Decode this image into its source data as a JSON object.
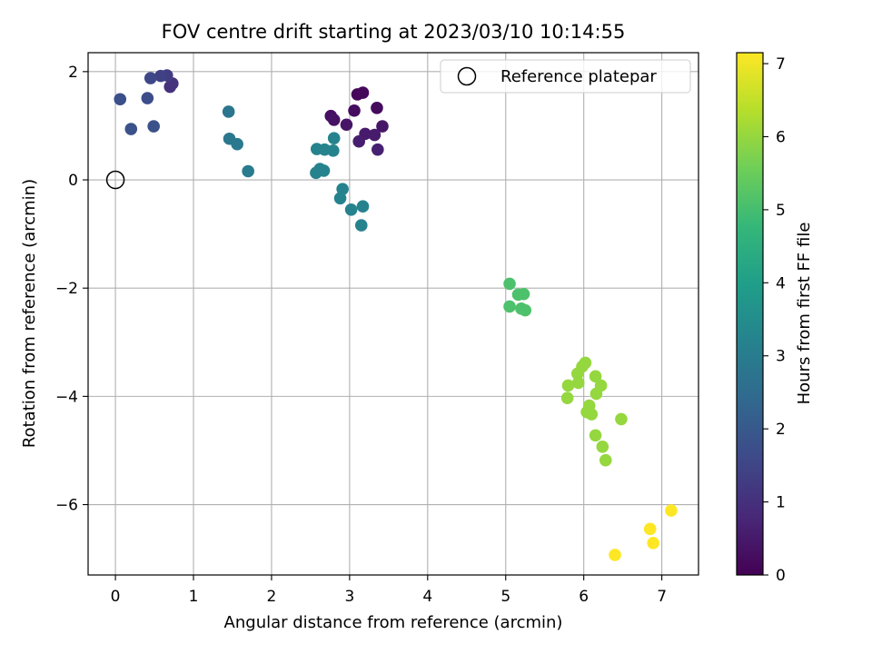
{
  "chart_data": {
    "type": "scatter",
    "title": "FOV centre drift starting at 2023/03/10 10:14:55",
    "xlabel": "Angular distance from reference (arcmin)",
    "ylabel": "Rotation from reference (arcmin)",
    "xlim": [
      -0.35,
      7.47
    ],
    "ylim": [
      -7.3,
      2.35
    ],
    "xticks": [
      0,
      1,
      2,
      3,
      4,
      5,
      6,
      7
    ],
    "yticks": [
      -6,
      -4,
      -2,
      0,
      2
    ],
    "xtick_labels": [
      "0",
      "1",
      "2",
      "3",
      "4",
      "5",
      "6",
      "7"
    ],
    "ytick_labels": [
      "−6",
      "−4",
      "−2",
      "0",
      "2"
    ],
    "grid": true,
    "legend": {
      "position": "top-right",
      "entries": [
        "Reference platepar"
      ]
    },
    "reference_point": {
      "name": "Reference platepar",
      "x": 0,
      "y": 0,
      "marker": "open-circle"
    },
    "colorbar": {
      "label": "Hours from first FF file",
      "min": 0,
      "max": 7.15,
      "ticks": [
        0,
        1,
        2,
        3,
        4,
        5,
        6,
        7
      ],
      "tick_labels": [
        "0",
        "1",
        "2",
        "3",
        "4",
        "5",
        "6",
        "7"
      ],
      "colormap": "viridis",
      "colors": [
        "#440154",
        "#482878",
        "#3e4989",
        "#31688e",
        "#26828e",
        "#1f9e89",
        "#35b779",
        "#6ece58",
        "#b5de2b",
        "#fde725"
      ]
    },
    "points": [
      {
        "x": 3.1,
        "y": 1.58,
        "h": 0.1
      },
      {
        "x": 3.17,
        "y": 1.61,
        "h": 0.15
      },
      {
        "x": 3.35,
        "y": 1.33,
        "h": 0.2
      },
      {
        "x": 3.06,
        "y": 1.28,
        "h": 0.25
      },
      {
        "x": 2.76,
        "y": 1.18,
        "h": 0.3
      },
      {
        "x": 2.8,
        "y": 1.11,
        "h": 0.35
      },
      {
        "x": 2.96,
        "y": 1.02,
        "h": 0.4
      },
      {
        "x": 3.42,
        "y": 0.99,
        "h": 0.45
      },
      {
        "x": 3.2,
        "y": 0.85,
        "h": 0.5
      },
      {
        "x": 3.32,
        "y": 0.83,
        "h": 0.55
      },
      {
        "x": 3.12,
        "y": 0.71,
        "h": 0.6
      },
      {
        "x": 3.36,
        "y": 0.56,
        "h": 0.65
      },
      {
        "x": 0.7,
        "y": 1.72,
        "h": 1.0
      },
      {
        "x": 0.73,
        "y": 1.78,
        "h": 1.05
      },
      {
        "x": 0.66,
        "y": 1.93,
        "h": 1.3
      },
      {
        "x": 0.58,
        "y": 1.92,
        "h": 1.4
      },
      {
        "x": 0.45,
        "y": 1.88,
        "h": 1.55
      },
      {
        "x": 0.41,
        "y": 1.51,
        "h": 1.7
      },
      {
        "x": 0.06,
        "y": 1.49,
        "h": 1.75
      },
      {
        "x": 0.49,
        "y": 0.99,
        "h": 1.8
      },
      {
        "x": 0.2,
        "y": 0.94,
        "h": 1.8
      },
      {
        "x": 1.45,
        "y": 1.26,
        "h": 2.8
      },
      {
        "x": 1.46,
        "y": 0.76,
        "h": 2.85
      },
      {
        "x": 1.56,
        "y": 0.66,
        "h": 2.9
      },
      {
        "x": 1.7,
        "y": 0.16,
        "h": 2.95
      },
      {
        "x": 2.8,
        "y": 0.77,
        "h": 3.2
      },
      {
        "x": 2.58,
        "y": 0.57,
        "h": 3.2
      },
      {
        "x": 2.68,
        "y": 0.56,
        "h": 3.2
      },
      {
        "x": 2.79,
        "y": 0.54,
        "h": 3.2
      },
      {
        "x": 2.62,
        "y": 0.2,
        "h": 3.2
      },
      {
        "x": 2.67,
        "y": 0.17,
        "h": 3.2
      },
      {
        "x": 2.57,
        "y": 0.13,
        "h": 3.2
      },
      {
        "x": 2.91,
        "y": -0.17,
        "h": 3.2
      },
      {
        "x": 2.88,
        "y": -0.34,
        "h": 3.2
      },
      {
        "x": 3.17,
        "y": -0.49,
        "h": 3.2
      },
      {
        "x": 3.02,
        "y": -0.55,
        "h": 3.2
      },
      {
        "x": 3.15,
        "y": -0.84,
        "h": 3.2
      },
      {
        "x": 5.05,
        "y": -1.92,
        "h": 5.1
      },
      {
        "x": 5.16,
        "y": -2.12,
        "h": 5.1
      },
      {
        "x": 5.23,
        "y": -2.11,
        "h": 5.1
      },
      {
        "x": 5.05,
        "y": -2.34,
        "h": 5.1
      },
      {
        "x": 5.2,
        "y": -2.38,
        "h": 5.1
      },
      {
        "x": 5.25,
        "y": -2.41,
        "h": 5.1
      },
      {
        "x": 6.02,
        "y": -3.38,
        "h": 6.0
      },
      {
        "x": 5.98,
        "y": -3.45,
        "h": 6.0
      },
      {
        "x": 5.92,
        "y": -3.58,
        "h": 6.0
      },
      {
        "x": 6.15,
        "y": -3.63,
        "h": 6.0
      },
      {
        "x": 5.8,
        "y": -3.8,
        "h": 6.0
      },
      {
        "x": 5.93,
        "y": -3.75,
        "h": 6.0
      },
      {
        "x": 6.22,
        "y": -3.8,
        "h": 6.0
      },
      {
        "x": 6.16,
        "y": -3.95,
        "h": 6.0
      },
      {
        "x": 5.79,
        "y": -4.03,
        "h": 6.0
      },
      {
        "x": 6.07,
        "y": -4.17,
        "h": 6.0
      },
      {
        "x": 6.04,
        "y": -4.29,
        "h": 6.0
      },
      {
        "x": 6.1,
        "y": -4.33,
        "h": 6.0
      },
      {
        "x": 6.48,
        "y": -4.42,
        "h": 6.0
      },
      {
        "x": 6.15,
        "y": -4.72,
        "h": 6.0
      },
      {
        "x": 6.24,
        "y": -4.93,
        "h": 6.0
      },
      {
        "x": 6.28,
        "y": -5.18,
        "h": 6.0
      },
      {
        "x": 7.12,
        "y": -6.11,
        "h": 7.15
      },
      {
        "x": 6.85,
        "y": -6.45,
        "h": 7.15
      },
      {
        "x": 6.89,
        "y": -6.71,
        "h": 7.15
      },
      {
        "x": 6.4,
        "y": -6.93,
        "h": 7.15
      }
    ]
  }
}
